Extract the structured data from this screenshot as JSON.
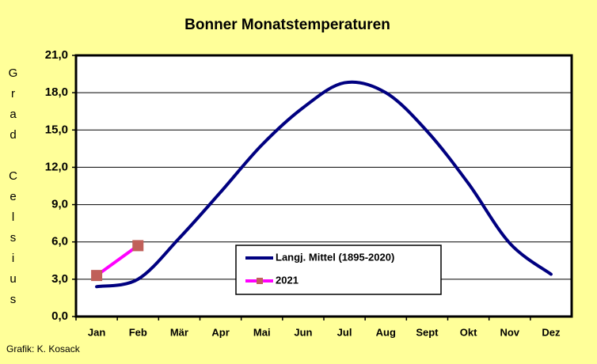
{
  "chart_data": {
    "type": "line",
    "title": "Bonner Monatstemperaturen",
    "ylabel": "Grad Celsius",
    "annotation": "Grafik:  K. Kosack",
    "categories": [
      "Jan",
      "Feb",
      "Mär",
      "Apr",
      "Mai",
      "Jun",
      "Jul",
      "Aug",
      "Sept",
      "Okt",
      "Nov",
      "Dez"
    ],
    "series": [
      {
        "name": "Langj. Mittel (1895-2020)",
        "color": "#000080",
        "values": [
          2.4,
          3.0,
          6.3,
          10.0,
          13.8,
          16.8,
          18.8,
          18.0,
          14.9,
          10.7,
          5.9,
          3.4
        ]
      },
      {
        "name": "2021",
        "color": "#ff00ff",
        "marker_color": "#c0605a",
        "values": [
          3.3,
          5.7,
          null,
          null,
          null,
          null,
          null,
          null,
          null,
          null,
          null,
          null
        ]
      }
    ],
    "smooth": true,
    "ylim": [
      0,
      21
    ],
    "yticks": [
      {
        "value": 0,
        "label": "0,0"
      },
      {
        "value": 3,
        "label": "3,0"
      },
      {
        "value": 6,
        "label": "6,0"
      },
      {
        "value": 9,
        "label": "9,0"
      },
      {
        "value": 12,
        "label": "12,0"
      },
      {
        "value": 15,
        "label": "15,0"
      },
      {
        "value": 18,
        "label": "18,0"
      },
      {
        "value": 21,
        "label": "21,0"
      }
    ],
    "grid": true
  }
}
